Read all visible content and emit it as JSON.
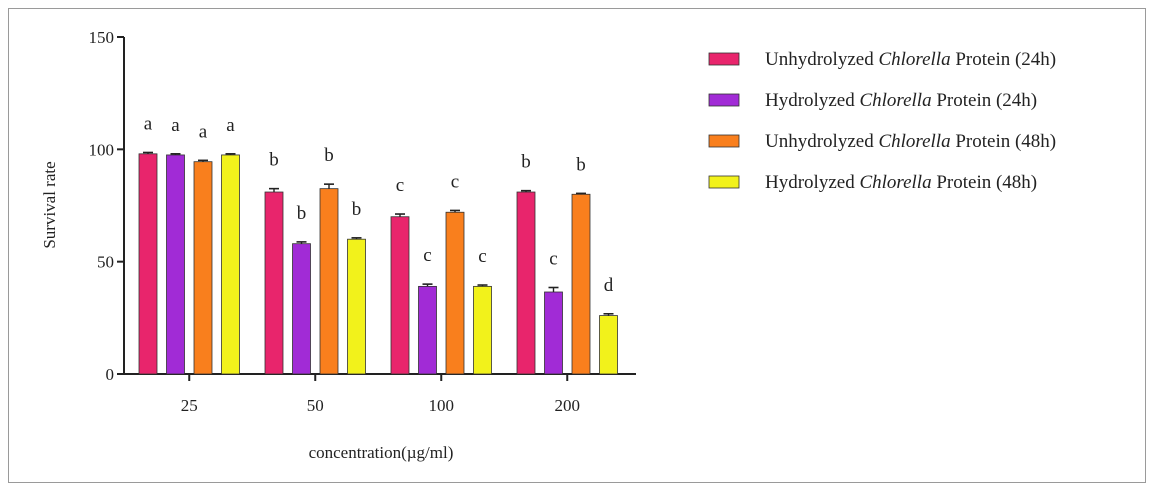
{
  "chart_data": {
    "type": "bar",
    "title": "",
    "xlabel": "concentration(µg/ml)",
    "ylabel": "Survival rate",
    "ylim": [
      0,
      150
    ],
    "yticks": [
      "0",
      "50",
      "100",
      "150"
    ],
    "categories": [
      "25",
      "50",
      "100",
      "200"
    ],
    "legend_position": "right",
    "series": [
      {
        "legend_prefix": "Unhydrolyzed ",
        "legend_italic": "Chlorella",
        "legend_suffix": " Protein (24h)",
        "color": "#e8256c",
        "values": [
          98,
          81,
          70,
          81
        ],
        "errors": [
          0.6,
          1.5,
          1.2,
          0.6
        ],
        "letters": [
          "a",
          "b",
          "c",
          "b"
        ]
      },
      {
        "legend_prefix": "Hydrolyzed ",
        "legend_italic": "Chlorella",
        "legend_suffix": " Protein (24h)",
        "color": "#a12bd6",
        "values": [
          97.5,
          58,
          39,
          36.5
        ],
        "errors": [
          0.5,
          0.8,
          1.0,
          2.0
        ],
        "letters": [
          "a",
          "b",
          "c",
          "c"
        ]
      },
      {
        "legend_prefix": "Unhydrolyzed ",
        "legend_italic": "Chlorella",
        "legend_suffix": " Protein (48h)",
        "color": "#f97f1d",
        "values": [
          94.5,
          82.5,
          72,
          80
        ],
        "errors": [
          0.6,
          2.0,
          0.8,
          0.4
        ],
        "letters": [
          "a",
          "b",
          "c",
          "b"
        ]
      },
      {
        "legend_prefix": "Hydrolyzed ",
        "legend_italic": "Chlorella",
        "legend_suffix": " Protein (48h)",
        "color": "#f2f21b",
        "values": [
          97.5,
          60,
          39,
          26
        ],
        "errors": [
          0.5,
          0.6,
          0.6,
          0.8
        ],
        "letters": [
          "a",
          "b",
          "c",
          "d"
        ]
      }
    ]
  }
}
